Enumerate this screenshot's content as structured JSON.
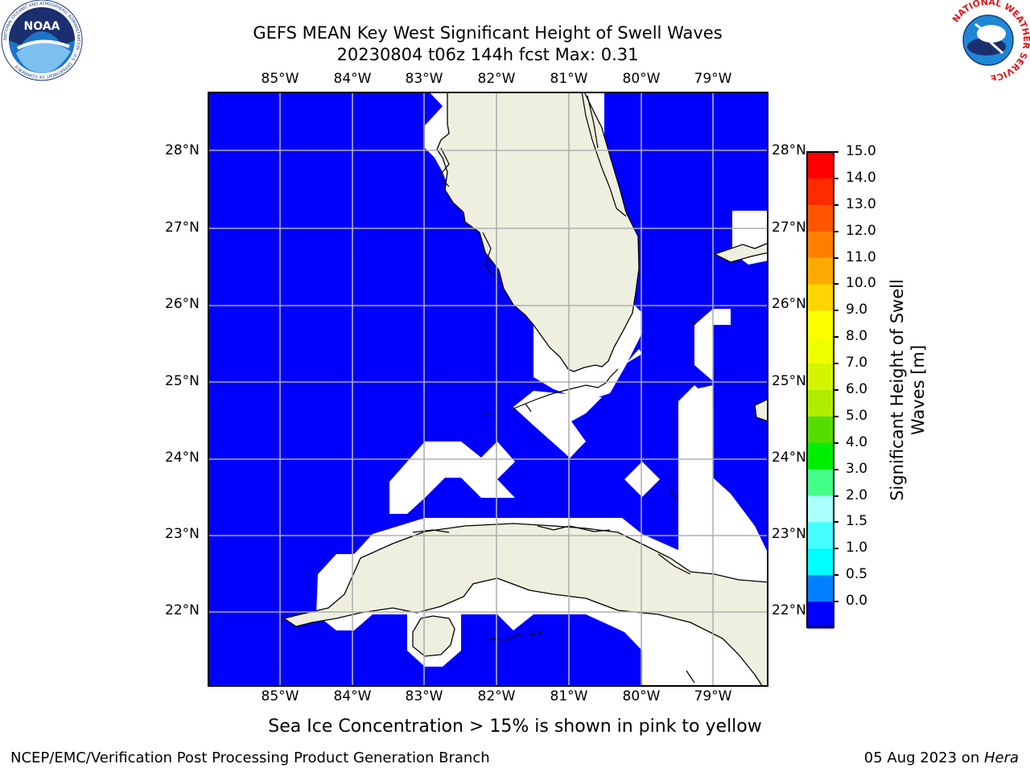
{
  "title": {
    "line1": "GEFS MEAN Key West Significant Height of Swell Waves",
    "line2": "20230804 t06z 144h fcst   Max: 0.31"
  },
  "logos": {
    "left": {
      "icon": "noaa-logo-icon",
      "text": "NOAA",
      "ring_text": "NATIONAL OCEANIC AND ATMOSPHERIC ADMINISTRATION · U.S. DEPARTMENT OF COMMERCE"
    },
    "right": {
      "icon": "nws-logo-icon",
      "ring_text": "NATIONAL WEATHER SERVICE"
    }
  },
  "map": {
    "lon_ticks": [
      "85°W",
      "84°W",
      "83°W",
      "82°W",
      "81°W",
      "80°W",
      "79°W"
    ],
    "lat_ticks": [
      "28°N",
      "27°N",
      "26°N",
      "25°N",
      "24°N",
      "23°N",
      "22°N"
    ],
    "extent": {
      "lon_min": -86.0,
      "lon_max": -78.25,
      "lat_min": 21.0,
      "lat_max": 28.8
    },
    "colors": {
      "ocean": "#0000ff",
      "land": "#efefdf",
      "masked": "#ffffff",
      "grid": "#b0b0b0"
    }
  },
  "colorbar": {
    "label_line1": "Significant Height of Swell",
    "label_line2": "Waves [m]",
    "ticks": [
      "15.0",
      "14.0",
      "13.0",
      "12.0",
      "11.0",
      "10.0",
      "9.0",
      "8.0",
      "7.0",
      "6.0",
      "5.0",
      "4.0",
      "3.0",
      "2.0",
      "1.5",
      "1.0",
      "0.5",
      "0.0"
    ],
    "colors": [
      "#ff0000",
      "#ff2a00",
      "#ff5500",
      "#ff8000",
      "#ffaa00",
      "#ffd400",
      "#ffff00",
      "#f0ff00",
      "#d4f500",
      "#b0ee00",
      "#55dd00",
      "#00ee00",
      "#44ff88",
      "#aaffff",
      "#44ffff",
      "#00ffff",
      "#0080ff",
      "#0000ff"
    ]
  },
  "caption": "Sea Ice Concentration > 15% is shown in pink to yellow",
  "footer": {
    "left": "NCEP/EMC/Verification Post Processing Product Generation Branch",
    "right_date": "05 Aug 2023 on ",
    "right_host": "Hera"
  }
}
